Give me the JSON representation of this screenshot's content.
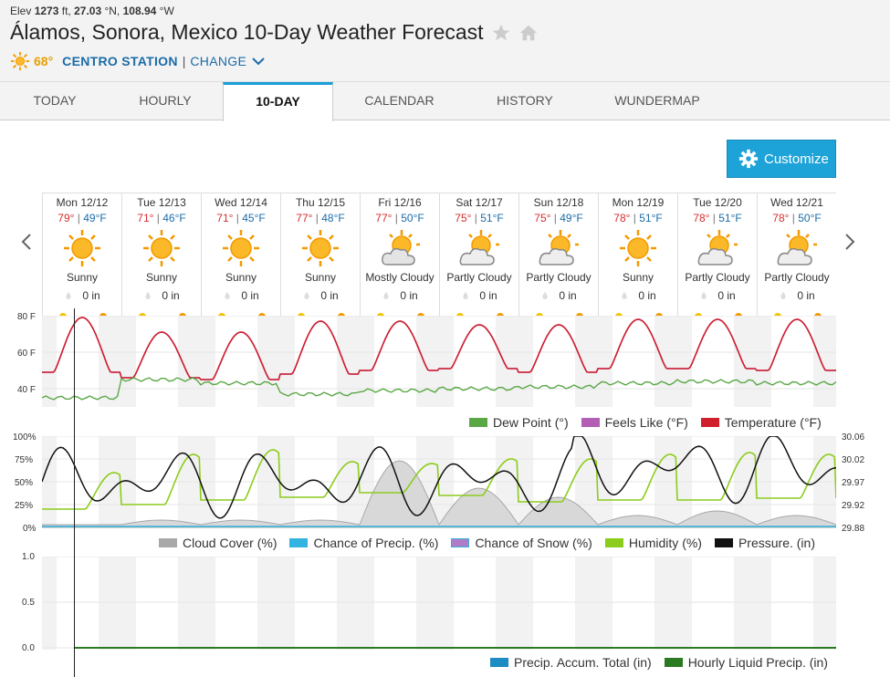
{
  "header": {
    "elev_label": "Elev",
    "elev_value": "1273",
    "elev_unit": "ft,",
    "lat": "27.03",
    "lat_unit": "°N,",
    "lon": "108.94",
    "lon_unit": "°W",
    "title": "Álamos, Sonora, Mexico 10-Day Weather Forecast",
    "current_temp": "68°",
    "station": "CENTRO STATION",
    "change": "CHANGE"
  },
  "tabs": [
    {
      "label": "TODAY"
    },
    {
      "label": "HOURLY"
    },
    {
      "label": "10-DAY",
      "active": true
    },
    {
      "label": "CALENDAR"
    },
    {
      "label": "HISTORY"
    },
    {
      "label": "WUNDERMAP"
    }
  ],
  "customize_label": "Customize",
  "days": [
    {
      "date": "Mon 12/12",
      "hi": "79°",
      "lo": "49°F",
      "icon": "sunny-icon",
      "cond": "Sunny",
      "precip": "0 in"
    },
    {
      "date": "Tue 12/13",
      "hi": "71°",
      "lo": "46°F",
      "icon": "sunny-icon",
      "cond": "Sunny",
      "precip": "0 in"
    },
    {
      "date": "Wed 12/14",
      "hi": "71°",
      "lo": "45°F",
      "icon": "sunny-icon",
      "cond": "Sunny",
      "precip": "0 in"
    },
    {
      "date": "Thu 12/15",
      "hi": "77°",
      "lo": "48°F",
      "icon": "sunny-icon",
      "cond": "Sunny",
      "precip": "0 in"
    },
    {
      "date": "Fri 12/16",
      "hi": "77°",
      "lo": "50°F",
      "icon": "mostly-cloudy-icon",
      "cond": "Mostly Cloudy",
      "precip": "0 in"
    },
    {
      "date": "Sat 12/17",
      "hi": "75°",
      "lo": "51°F",
      "icon": "partly-cloudy-icon",
      "cond": "Partly Cloudy",
      "precip": "0 in"
    },
    {
      "date": "Sun 12/18",
      "hi": "75°",
      "lo": "49°F",
      "icon": "partly-cloudy-icon",
      "cond": "Partly Cloudy",
      "precip": "0 in"
    },
    {
      "date": "Mon 12/19",
      "hi": "78°",
      "lo": "51°F",
      "icon": "sunny-icon",
      "cond": "Sunny",
      "precip": "0 in"
    },
    {
      "date": "Tue 12/20",
      "hi": "78°",
      "lo": "51°F",
      "icon": "partly-cloudy-icon",
      "cond": "Partly Cloudy",
      "precip": "0 in"
    },
    {
      "date": "Wed 12/21",
      "hi": "78°",
      "lo": "50°F",
      "icon": "partly-cloudy-icon",
      "cond": "Partly Cloudy",
      "precip": "0 in"
    }
  ],
  "colors": {
    "temperature": "#d0202e",
    "dew_point": "#5aa845",
    "feels_like": "#b25fb5",
    "cloud_cover": "#a8a8a8",
    "chance_precip": "#33b4e0",
    "chance_snow": "#b07bc7",
    "humidity": "#8ccc1c",
    "pressure": "#111111",
    "precip_accum": "#1e8bc3",
    "hourly_liquid": "#2b7a22",
    "accent": "#1ea3d8"
  },
  "charts": {
    "temp": {
      "yticks": [
        "80 F",
        "60 F",
        "40 F"
      ],
      "legend": [
        "Dew Point (°)",
        "Feels Like (°F)",
        "Temperature (°F)"
      ]
    },
    "cloud": {
      "yticks_left": [
        "100%",
        "75%",
        "50%",
        "25%",
        "0%"
      ],
      "yticks_right": [
        "30.06",
        "30.02",
        "29.97",
        "29.92",
        "29.88"
      ],
      "legend": [
        "Cloud Cover (%)",
        "Chance of Precip. (%)",
        "Chance of Snow (%)",
        "Humidity (%)",
        "Pressure. (in)"
      ]
    },
    "precip": {
      "yticks": [
        "1.0",
        "0.5",
        "0.0"
      ],
      "legend": [
        "Precip. Accum. Total (in)",
        "Hourly Liquid Precip. (in)"
      ]
    }
  },
  "chart_data": [
    {
      "type": "line",
      "yrange": [
        30,
        80
      ],
      "x": [
        "Mon 12/12",
        "Tue 12/13",
        "Wed 12/14",
        "Thu 12/15",
        "Fri 12/16",
        "Sat 12/17",
        "Sun 12/18",
        "Mon 12/19",
        "Tue 12/20",
        "Wed 12/21"
      ],
      "series": [
        {
          "name": "Temperature (°F)",
          "values_hi": [
            79,
            71,
            71,
            77,
            77,
            75,
            75,
            78,
            78,
            78
          ],
          "values_lo": [
            49,
            46,
            45,
            48,
            50,
            51,
            49,
            51,
            51,
            50
          ]
        },
        {
          "name": "Dew Point (°)",
          "values": [
            35,
            45,
            43,
            37,
            39,
            40,
            41,
            43,
            44,
            43
          ]
        }
      ]
    },
    {
      "type": "line",
      "yrange_left": [
        0,
        100
      ],
      "yrange_right": [
        29.88,
        30.06
      ],
      "series": [
        {
          "name": "Humidity (%)",
          "values_lo": [
            20,
            25,
            30,
            33,
            38,
            35,
            28,
            30,
            30,
            32
          ],
          "values_hi": [
            60,
            80,
            85,
            72,
            70,
            75,
            75,
            80,
            82,
            80
          ]
        },
        {
          "name": "Cloud Cover (%)",
          "values_peak": [
            0,
            5,
            5,
            5,
            70,
            40,
            30,
            10,
            15,
            10
          ]
        }
      ]
    },
    {
      "type": "line",
      "yrange": [
        0,
        1.0
      ],
      "series": [
        {
          "name": "Precip. Accum. Total (in)",
          "values": [
            0,
            0,
            0,
            0,
            0,
            0,
            0,
            0,
            0,
            0
          ]
        },
        {
          "name": "Hourly Liquid Precip. (in)",
          "values": [
            0,
            0,
            0,
            0,
            0,
            0,
            0,
            0,
            0,
            0
          ]
        }
      ]
    }
  ]
}
